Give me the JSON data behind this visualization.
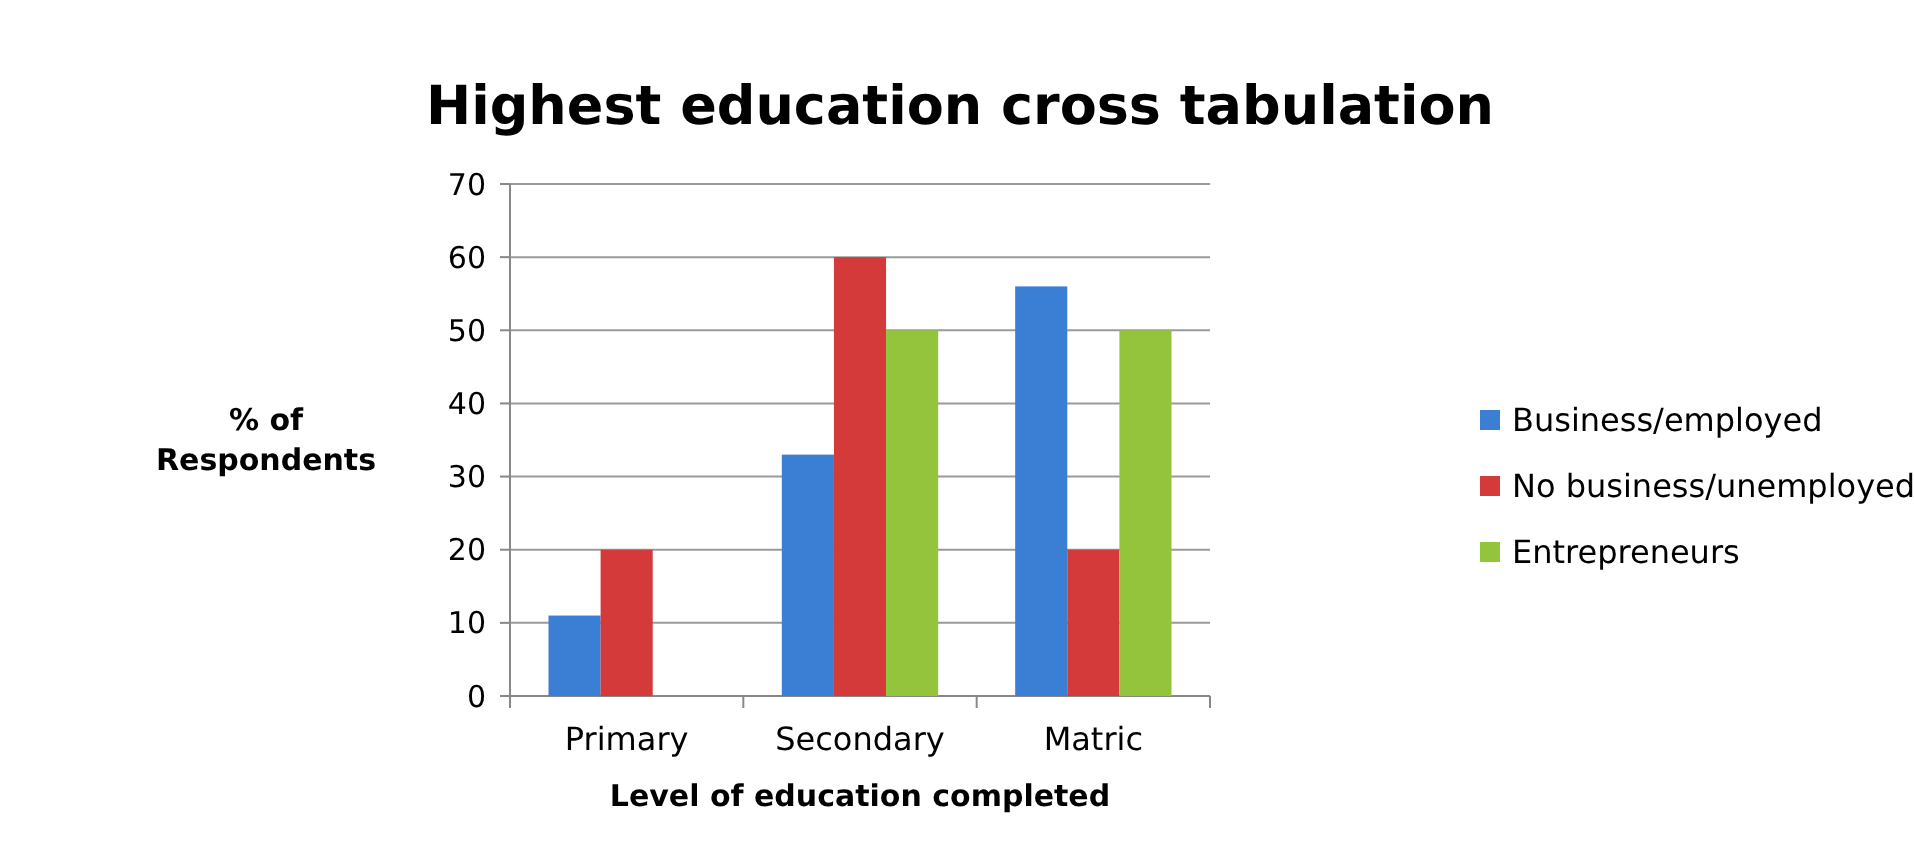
{
  "chart_data": {
    "type": "bar",
    "title": "Highest education cross tabulation",
    "xlabel": "Level of education completed",
    "ylabel": "% of Respondents",
    "categories": [
      "Primary",
      "Secondary",
      "Matric"
    ],
    "series": [
      {
        "name": "Business/employed",
        "color": "#3a7fd4",
        "values": [
          11,
          33,
          56
        ]
      },
      {
        "name": "No business/unemployed",
        "color": "#d43a3a",
        "values": [
          20,
          60,
          20
        ]
      },
      {
        "name": "Entrepreneurs",
        "color": "#94c43c",
        "values": [
          0,
          50,
          50
        ]
      }
    ],
    "ylim": [
      0,
      70
    ],
    "yticks": [
      0,
      10,
      20,
      30,
      40,
      50,
      60,
      70
    ],
    "grid": "y",
    "legend": "right"
  }
}
